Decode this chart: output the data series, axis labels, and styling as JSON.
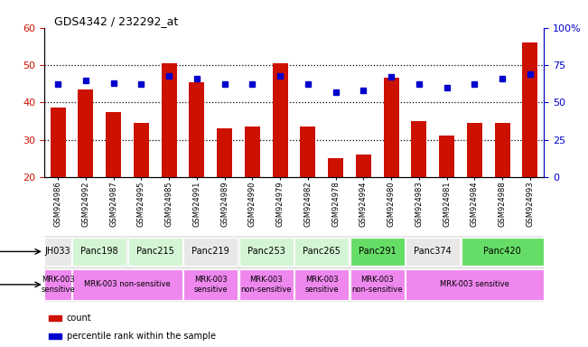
{
  "title": "GDS4342 / 232292_at",
  "samples": [
    "GSM924986",
    "GSM924992",
    "GSM924987",
    "GSM924995",
    "GSM924985",
    "GSM924991",
    "GSM924989",
    "GSM924990",
    "GSM924979",
    "GSM924982",
    "GSM924978",
    "GSM924994",
    "GSM924980",
    "GSM924983",
    "GSM924981",
    "GSM924984",
    "GSM924988",
    "GSM924993"
  ],
  "counts": [
    38.5,
    43.5,
    37.5,
    34.5,
    50.5,
    45.5,
    33.0,
    33.5,
    50.5,
    33.5,
    25.0,
    26.0,
    46.5,
    35.0,
    31.0,
    34.5,
    34.5,
    56.0
  ],
  "percentiles": [
    62,
    65,
    63,
    62,
    68,
    66,
    62,
    62,
    68,
    62,
    57,
    58,
    67,
    62,
    60,
    62,
    66,
    69
  ],
  "cell_lines": [
    {
      "name": "JH033",
      "start": 0,
      "end": 1,
      "color": "#e8e8e8"
    },
    {
      "name": "Panc198",
      "start": 1,
      "end": 3,
      "color": "#d4f5d4"
    },
    {
      "name": "Panc215",
      "start": 3,
      "end": 5,
      "color": "#d4f5d4"
    },
    {
      "name": "Panc219",
      "start": 5,
      "end": 7,
      "color": "#e8e8e8"
    },
    {
      "name": "Panc253",
      "start": 7,
      "end": 9,
      "color": "#d4f5d4"
    },
    {
      "name": "Panc265",
      "start": 9,
      "end": 11,
      "color": "#d4f5d4"
    },
    {
      "name": "Panc291",
      "start": 11,
      "end": 13,
      "color": "#66dd66"
    },
    {
      "name": "Panc374",
      "start": 13,
      "end": 15,
      "color": "#e8e8e8"
    },
    {
      "name": "Panc420",
      "start": 15,
      "end": 18,
      "color": "#66dd66"
    }
  ],
  "other_groups": [
    {
      "label": "MRK-003\nsensitive",
      "start": 0,
      "end": 1,
      "color": "#ee88ee"
    },
    {
      "label": "MRK-003 non-sensitive",
      "start": 1,
      "end": 5,
      "color": "#ee88ee"
    },
    {
      "label": "MRK-003\nsensitive",
      "start": 5,
      "end": 7,
      "color": "#ee88ee"
    },
    {
      "label": "MRK-003\nnon-sensitive",
      "start": 7,
      "end": 9,
      "color": "#ee88ee"
    },
    {
      "label": "MRK-003\nsensitive",
      "start": 9,
      "end": 11,
      "color": "#ee88ee"
    },
    {
      "label": "MRK-003\nnon-sensitive",
      "start": 11,
      "end": 13,
      "color": "#ee88ee"
    },
    {
      "label": "MRK-003 sensitive",
      "start": 13,
      "end": 18,
      "color": "#ee88ee"
    }
  ],
  "ylim_left": [
    20,
    60
  ],
  "ylim_right": [
    0,
    100
  ],
  "yticks_left": [
    20,
    30,
    40,
    50,
    60
  ],
  "yticks_right": [
    0,
    25,
    50,
    75,
    100
  ],
  "ytick_labels_right": [
    "0",
    "25",
    "50",
    "75",
    "100%"
  ],
  "bar_color": "#cc1100",
  "dot_color": "#0000cc",
  "bg_color": "#ffffff",
  "grid_color": "#000000",
  "spine_color": "#000000"
}
